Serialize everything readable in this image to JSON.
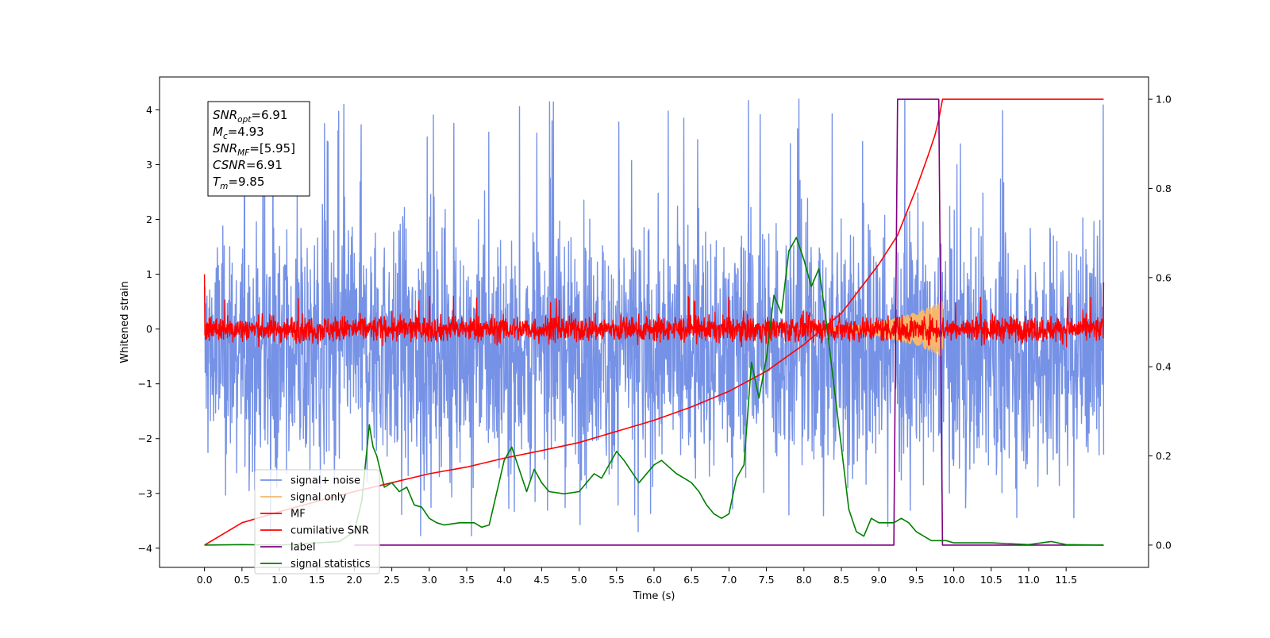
{
  "chart_data": {
    "type": "line",
    "xlabel": "Time (s)",
    "ylabel": "Whitened strain",
    "xlim": [
      -0.6,
      12.6
    ],
    "ylim_left": [
      -4.35,
      4.6
    ],
    "ylim_right": [
      -0.05,
      1.05
    ],
    "x_ticks": [
      "0.0",
      "0.5",
      "1.0",
      "1.5",
      "2.0",
      "2.5",
      "3.0",
      "3.5",
      "4.0",
      "4.5",
      "5.0",
      "5.5",
      "6.0",
      "6.5",
      "7.0",
      "7.5",
      "8.0",
      "8.5",
      "9.0",
      "9.5",
      "10.0",
      "10.5",
      "11.0",
      "11.5"
    ],
    "y_ticks_left": [
      "−4",
      "−3",
      "−2",
      "−1",
      "0",
      "1",
      "2",
      "3",
      "4"
    ],
    "y_ticks_right": [
      "0.0",
      "0.2",
      "0.4",
      "0.6",
      "0.8",
      "1.0"
    ],
    "grid": false,
    "legend_position": "lower-left",
    "annotation": {
      "lines": [
        {
          "sym": "SNR",
          "sub": "opt",
          "val": "=6.91"
        },
        {
          "sym": "M",
          "sub": "c",
          "val": "=4.93"
        },
        {
          "sym": "SNR",
          "sub": "MF",
          "val": "=[5.95]"
        },
        {
          "sym": "CSNR",
          "sub": "",
          "val": "=6.91"
        },
        {
          "sym": "T",
          "sub": "m",
          "val": "=9.85"
        }
      ]
    },
    "series": [
      {
        "name": "signal+ noise",
        "color": "#7692e6",
        "axis": "left",
        "kind": "noise",
        "x_range": [
          0.0,
          12.0
        ],
        "mean": -0.4,
        "envelope": [
          -2.6,
          3.3
        ],
        "peak_max": 4.2,
        "peak_min": -3.8
      },
      {
        "name": "signal only",
        "color": "#f5b86c",
        "axis": "left",
        "kind": "chirp",
        "x_range": [
          7.5,
          9.85
        ],
        "max_amplitude": 0.5
      },
      {
        "name": "MF",
        "color": "#ff0000",
        "axis": "left",
        "kind": "noise",
        "x_range": [
          0.0,
          12.0
        ],
        "mean": 0.0,
        "envelope": [
          -0.25,
          0.35
        ],
        "peak_max": 0.6,
        "start_value": 1.0,
        "end_value": 0.85
      },
      {
        "name": "cumilative SNR",
        "color": "#ff0000",
        "axis": "right",
        "x": [
          0.0,
          0.5,
          1.0,
          1.5,
          2.0,
          2.5,
          3.0,
          3.5,
          4.0,
          4.5,
          5.0,
          5.5,
          6.0,
          6.5,
          7.0,
          7.5,
          8.0,
          8.5,
          9.0,
          9.25,
          9.5,
          9.65,
          9.75,
          9.8,
          9.85,
          10.0,
          11.0,
          12.0
        ],
        "y": [
          0.0,
          0.05,
          0.075,
          0.098,
          0.12,
          0.14,
          0.16,
          0.175,
          0.195,
          0.212,
          0.23,
          0.255,
          0.28,
          0.31,
          0.345,
          0.39,
          0.45,
          0.52,
          0.63,
          0.695,
          0.8,
          0.87,
          0.92,
          0.955,
          1.0,
          1.0,
          1.0,
          1.0
        ]
      },
      {
        "name": "label",
        "color": "#800080",
        "axis": "right",
        "x": [
          2.0,
          9.2,
          9.25,
          9.8,
          9.85,
          12.0
        ],
        "y": [
          0.0,
          0.0,
          1.0,
          1.0,
          0.0,
          0.0
        ]
      },
      {
        "name": "signal statistics",
        "color": "#008000",
        "axis": "right",
        "x": [
          0.0,
          0.5,
          1.0,
          1.5,
          1.8,
          2.0,
          2.1,
          2.2,
          2.25,
          2.3,
          2.4,
          2.5,
          2.6,
          2.7,
          2.8,
          2.9,
          3.0,
          3.1,
          3.2,
          3.4,
          3.6,
          3.7,
          3.8,
          4.0,
          4.1,
          4.3,
          4.4,
          4.5,
          4.6,
          4.8,
          5.0,
          5.2,
          5.3,
          5.5,
          5.6,
          5.8,
          6.0,
          6.1,
          6.3,
          6.4,
          6.5,
          6.6,
          6.7,
          6.8,
          6.9,
          7.0,
          7.1,
          7.2,
          7.3,
          7.4,
          7.5,
          7.6,
          7.7,
          7.8,
          7.9,
          8.0,
          8.1,
          8.2,
          8.3,
          8.4,
          8.5,
          8.6,
          8.7,
          8.8,
          8.9,
          9.0,
          9.1,
          9.2,
          9.3,
          9.4,
          9.5,
          9.7,
          9.9,
          10.0,
          10.5,
          11.0,
          11.3,
          11.5,
          12.0
        ],
        "y": [
          0.0,
          0.001,
          0.0,
          0.005,
          0.008,
          0.03,
          0.1,
          0.27,
          0.22,
          0.2,
          0.13,
          0.14,
          0.12,
          0.13,
          0.09,
          0.085,
          0.06,
          0.05,
          0.045,
          0.05,
          0.05,
          0.04,
          0.045,
          0.19,
          0.22,
          0.12,
          0.17,
          0.14,
          0.12,
          0.115,
          0.12,
          0.16,
          0.15,
          0.21,
          0.19,
          0.14,
          0.18,
          0.19,
          0.16,
          0.15,
          0.14,
          0.12,
          0.09,
          0.07,
          0.06,
          0.07,
          0.15,
          0.18,
          0.41,
          0.33,
          0.42,
          0.56,
          0.52,
          0.66,
          0.69,
          0.64,
          0.58,
          0.62,
          0.5,
          0.36,
          0.22,
          0.08,
          0.03,
          0.02,
          0.06,
          0.05,
          0.05,
          0.05,
          0.06,
          0.05,
          0.03,
          0.01,
          0.01,
          0.005,
          0.005,
          0.001,
          0.008,
          0.001,
          0.0
        ]
      }
    ]
  }
}
